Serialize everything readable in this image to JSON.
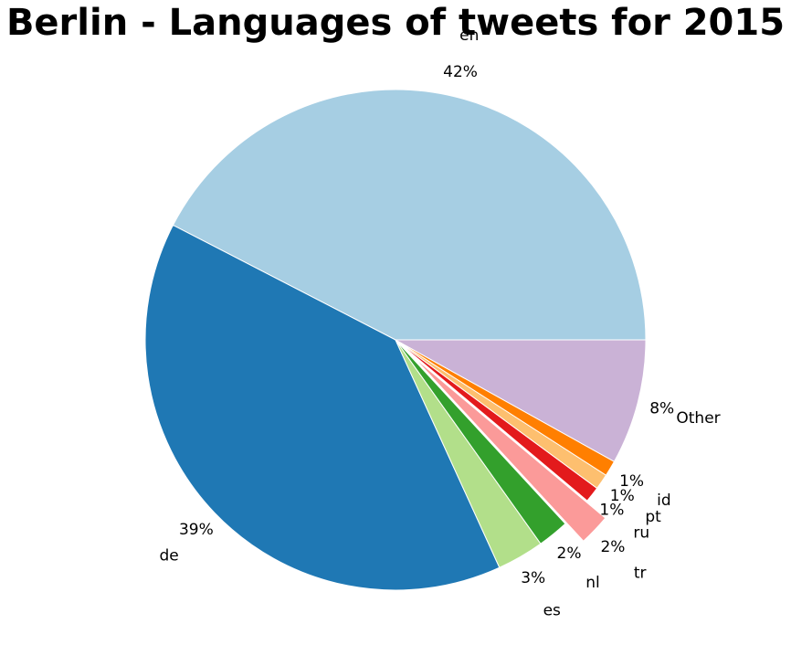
{
  "chart_data": {
    "type": "pie",
    "title": "Berlin - Languages of tweets for 2015",
    "slices": [
      {
        "label": "en",
        "value": 42,
        "pct_label": "42%",
        "color": "#a6cee3",
        "explode": false
      },
      {
        "label": "de",
        "value": 39,
        "pct_label": "39%",
        "color": "#1f78b4",
        "explode": false
      },
      {
        "label": "es",
        "value": 3,
        "pct_label": "3%",
        "color": "#b2df8a",
        "explode": false
      },
      {
        "label": "nl",
        "value": 2,
        "pct_label": "2%",
        "color": "#33a02c",
        "explode": false
      },
      {
        "label": "tr",
        "value": 2,
        "pct_label": "2%",
        "color": "#fb9a99",
        "explode": true
      },
      {
        "label": "ru",
        "value": 1,
        "pct_label": "1%",
        "color": "#e31a1c",
        "explode": false
      },
      {
        "label": "pt",
        "value": 1,
        "pct_label": "1%",
        "color": "#fdbf6f",
        "explode": false
      },
      {
        "label": "id",
        "value": 1,
        "pct_label": "1%",
        "color": "#ff7f00",
        "explode": false
      },
      {
        "label": "Other",
        "value": 8,
        "pct_label": "8%",
        "color": "#cab2d6",
        "explode": false
      }
    ]
  }
}
